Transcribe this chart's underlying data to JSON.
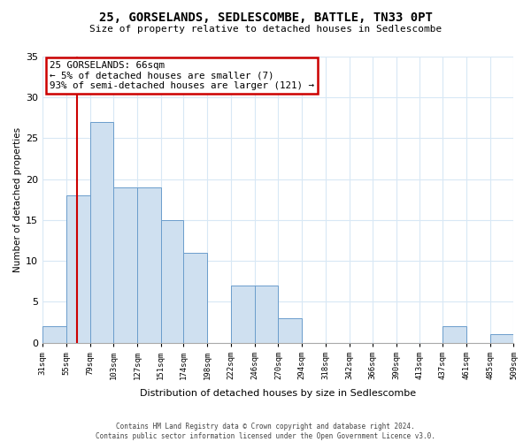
{
  "title": "25, GORSELANDS, SEDLESCOMBE, BATTLE, TN33 0PT",
  "subtitle": "Size of property relative to detached houses in Sedlescombe",
  "xlabel": "Distribution of detached houses by size in Sedlescombe",
  "ylabel": "Number of detached properties",
  "bin_labels": [
    "31sqm",
    "55sqm",
    "79sqm",
    "103sqm",
    "127sqm",
    "151sqm",
    "174sqm",
    "198sqm",
    "222sqm",
    "246sqm",
    "270sqm",
    "294sqm",
    "318sqm",
    "342sqm",
    "366sqm",
    "390sqm",
    "413sqm",
    "437sqm",
    "461sqm",
    "485sqm",
    "509sqm"
  ],
  "bar_heights": [
    2,
    18,
    27,
    19,
    19,
    15,
    11,
    0,
    7,
    7,
    3,
    0,
    0,
    0,
    0,
    0,
    0,
    2,
    0,
    1
  ],
  "bar_color": "#cfe0f0",
  "bar_edge_color": "#6b9dcc",
  "ylim": [
    0,
    35
  ],
  "yticks": [
    0,
    5,
    10,
    15,
    20,
    25,
    30,
    35
  ],
  "property_line_x": 66,
  "annotation_title": "25 GORSELANDS: 66sqm",
  "annotation_line1": "← 5% of detached houses are smaller (7)",
  "annotation_line2": "93% of semi-detached houses are larger (121) →",
  "annotation_box_color": "#ffffff",
  "annotation_box_edge_color": "#cc0000",
  "property_line_color": "#cc0000",
  "footer_line1": "Contains HM Land Registry data © Crown copyright and database right 2024.",
  "footer_line2": "Contains public sector information licensed under the Open Government Licence v3.0.",
  "background_color": "#ffffff",
  "grid_color": "#d8e8f5"
}
